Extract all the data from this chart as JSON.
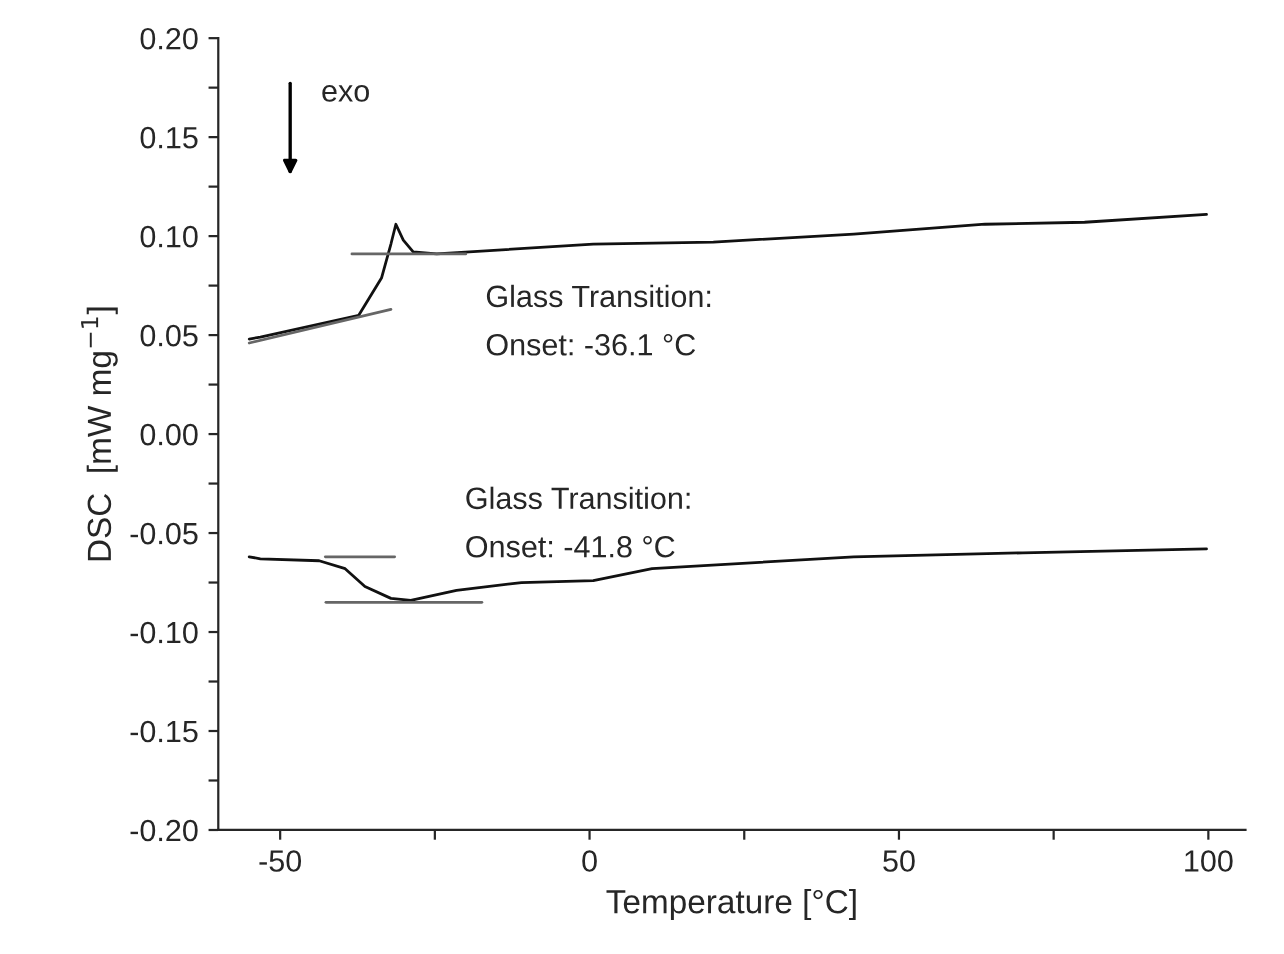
{
  "chart_data": {
    "type": "line",
    "xlabel": "Temperature [°C]",
    "ylabel": "DSC  [mW mg$^{−1}$]",
    "xlim": [
      -60,
      106
    ],
    "ylim": [
      -0.2,
      0.2
    ],
    "xticks": [
      -50,
      {
        "value": -25,
        "label": null
      },
      0,
      {
        "value": 25,
        "label": null
      },
      50,
      {
        "value": 75,
        "label": null
      },
      100
    ],
    "yticks": [
      {
        "value": -0.2,
        "label": "-0.20"
      },
      {
        "value": -0.175,
        "label": null
      },
      {
        "value": -0.15,
        "label": "-0.15"
      },
      {
        "value": -0.125,
        "label": null
      },
      {
        "value": -0.1,
        "label": "-0.10"
      },
      {
        "value": -0.075,
        "label": null
      },
      {
        "value": -0.05,
        "label": "-0.05"
      },
      {
        "value": -0.025,
        "label": null
      },
      {
        "value": 0.0,
        "label": "0.00"
      },
      {
        "value": 0.025,
        "label": null
      },
      {
        "value": 0.05,
        "label": "0.05"
      },
      {
        "value": 0.075,
        "label": null
      },
      {
        "value": 0.1,
        "label": "0.10"
      },
      {
        "value": 0.125,
        "label": null
      },
      {
        "value": 0.15,
        "label": "0.15"
      },
      {
        "value": 0.175,
        "label": null
      },
      {
        "value": 0.2,
        "label": "0.20"
      }
    ],
    "grid": false,
    "series": [
      {
        "color": "#111111",
        "x": [
          -55,
          -53.2,
          -37.3,
          -33.6,
          -32.1,
          -31.3,
          -30.1,
          -28.5,
          -24.7,
          0.6,
          20,
          42.7,
          63.9,
          80,
          99.7
        ],
        "values": [
          0.048,
          0.049,
          0.06,
          0.079,
          0.096,
          0.106,
          0.098,
          0.092,
          0.091,
          0.096,
          0.097,
          0.101,
          0.106,
          0.107,
          0.111
        ]
      },
      {
        "color": "#111111",
        "x": [
          -55,
          -53.2,
          -43.7,
          -39.5,
          -36.3,
          -32.1,
          -28.9,
          -21.5,
          -11,
          0.6,
          10.1,
          42.7,
          70,
          99.7
        ],
        "values": [
          -0.062,
          -0.063,
          -0.064,
          -0.068,
          -0.077,
          -0.083,
          -0.084,
          -0.079,
          -0.075,
          -0.074,
          -0.068,
          -0.062,
          -0.06,
          -0.058
        ]
      },
      {
        "color": "#666666",
        "x": [
          -55,
          -32.1
        ],
        "values": [
          0.046,
          0.063
        ]
      },
      {
        "color": "#666666",
        "x": [
          -38.4,
          -20
        ],
        "values": [
          0.091,
          0.091
        ]
      },
      {
        "color": "#666666",
        "x": [
          -42.7,
          -31.5
        ],
        "values": [
          -0.062,
          -0.062
        ]
      },
      {
        "color": "#666666",
        "x": [
          -42.6,
          -17.4
        ],
        "values": [
          -0.085,
          -0.085
        ]
      }
    ],
    "annotations": [
      "exo",
      "Glass Transition:\nOnset: -36.1 °C",
      "Glass Transition:\nOnset: -41.8 °C"
    ]
  }
}
